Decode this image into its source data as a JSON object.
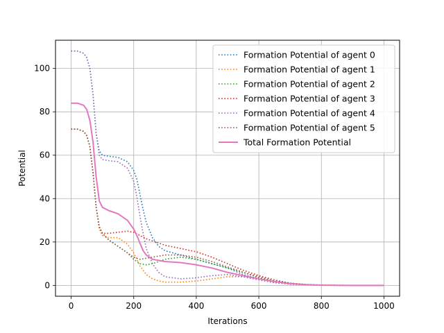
{
  "chart_data": {
    "type": "line",
    "title": "",
    "xlabel": "Iterations",
    "ylabel": "Potential",
    "xlim": [
      -50,
      1050
    ],
    "ylim": [
      -5,
      113
    ],
    "xticks": [
      0,
      200,
      400,
      600,
      800,
      1000
    ],
    "yticks": [
      0,
      20,
      40,
      60,
      80,
      100
    ],
    "grid": true,
    "legend_position": "top-right",
    "series": [
      {
        "name": "Formation Potential of agent 0",
        "color": "#1f77b4",
        "style": "dotted",
        "x": [
          0,
          20,
          40,
          50,
          60,
          70,
          80,
          90,
          100,
          120,
          150,
          180,
          200,
          210,
          220,
          230,
          240,
          260,
          280,
          300,
          350,
          400,
          450,
          500,
          550,
          600,
          650,
          700,
          750,
          800,
          900,
          1000
        ],
        "y": [
          108,
          108,
          107,
          105,
          100,
          88,
          70,
          62,
          60,
          59.5,
          59,
          57,
          53,
          49,
          42,
          35,
          29,
          22,
          18,
          16,
          14,
          12,
          10,
          8,
          5,
          3,
          1.5,
          0.8,
          0.3,
          0.1,
          0,
          0
        ]
      },
      {
        "name": "Formation Potential of agent 1",
        "color": "#ff7f0e",
        "style": "dotted",
        "x": [
          0,
          20,
          40,
          50,
          60,
          70,
          80,
          90,
          100,
          120,
          150,
          180,
          200,
          210,
          220,
          240,
          260,
          280,
          300,
          350,
          400,
          450,
          500,
          550,
          600,
          650,
          700,
          750,
          800,
          900,
          1000
        ],
        "y": [
          72,
          72,
          71,
          69,
          64,
          52,
          36,
          26,
          23,
          22,
          22,
          19,
          15,
          12,
          9,
          5,
          3,
          2,
          1.5,
          1.5,
          2,
          3,
          4,
          4,
          3,
          2,
          1,
          0.5,
          0.2,
          0,
          0
        ]
      },
      {
        "name": "Formation Potential of agent 2",
        "color": "#2ca02c",
        "style": "dotted",
        "x": [
          0,
          20,
          40,
          50,
          60,
          70,
          80,
          90,
          100,
          120,
          150,
          180,
          200,
          220,
          240,
          260,
          280,
          300,
          350,
          400,
          450,
          500,
          550,
          600,
          650,
          700,
          750,
          800,
          900,
          1000
        ],
        "y": [
          72,
          72,
          71,
          69,
          64,
          52,
          36,
          27,
          24,
          21,
          18,
          15,
          12,
          10,
          9.5,
          10,
          11,
          12,
          13,
          12,
          10,
          8,
          6,
          4,
          2,
          1,
          0.4,
          0.1,
          0,
          0
        ]
      },
      {
        "name": "Formation Potential of agent 3",
        "color": "#d62728",
        "style": "dotted",
        "x": [
          0,
          20,
          40,
          50,
          60,
          70,
          80,
          90,
          100,
          120,
          150,
          180,
          200,
          220,
          240,
          260,
          280,
          300,
          350,
          400,
          450,
          500,
          550,
          600,
          650,
          700,
          750,
          800,
          900,
          1000
        ],
        "y": [
          72,
          72,
          71,
          69,
          64,
          52,
          36,
          27,
          24,
          24,
          24.5,
          25,
          24.5,
          23,
          21.5,
          20.5,
          19.5,
          18.5,
          17,
          15.5,
          13,
          10,
          7,
          4.5,
          2.5,
          1,
          0.4,
          0.1,
          0,
          0
        ]
      },
      {
        "name": "Formation Potential of agent 4",
        "color": "#9467bd",
        "style": "dotted",
        "x": [
          0,
          20,
          40,
          50,
          60,
          70,
          80,
          90,
          100,
          120,
          150,
          180,
          200,
          210,
          220,
          230,
          240,
          260,
          280,
          300,
          350,
          400,
          450,
          500,
          550,
          600,
          650,
          700,
          750,
          800,
          900,
          1000
        ],
        "y": [
          108,
          108,
          107,
          105,
          100,
          88,
          70,
          60,
          58,
          57.5,
          57,
          54,
          48,
          41,
          32,
          24,
          17,
          10,
          6,
          4,
          3,
          3.5,
          4.5,
          5,
          4,
          2.5,
          1.2,
          0.5,
          0.2,
          0.05,
          0,
          0
        ]
      },
      {
        "name": "Formation Potential of agent 5",
        "color": "#8c564b",
        "style": "dotted",
        "x": [
          0,
          20,
          40,
          50,
          60,
          70,
          80,
          90,
          100,
          120,
          150,
          180,
          200,
          220,
          240,
          260,
          280,
          300,
          350,
          400,
          450,
          500,
          550,
          600,
          650,
          700,
          750,
          800,
          900,
          1000
        ],
        "y": [
          72,
          72,
          71,
          69,
          64,
          52,
          36,
          27,
          24,
          21,
          18,
          15,
          13,
          12,
          12.5,
          13,
          13.5,
          14,
          14,
          13,
          11,
          8.5,
          6,
          3.5,
          1.8,
          0.8,
          0.3,
          0.1,
          0,
          0
        ]
      },
      {
        "name": "Total Formation Potential",
        "color": "#e377c2",
        "style": "solid",
        "x": [
          0,
          20,
          40,
          50,
          60,
          70,
          80,
          90,
          100,
          120,
          150,
          180,
          200,
          210,
          220,
          230,
          240,
          260,
          280,
          300,
          350,
          400,
          450,
          500,
          550,
          600,
          650,
          700,
          750,
          800,
          900,
          1000
        ],
        "y": [
          84,
          84,
          83,
          81,
          76,
          66,
          50,
          39,
          36,
          34.5,
          33,
          30,
          26,
          23,
          19.5,
          16,
          14,
          12,
          11.5,
          11,
          10.5,
          9.5,
          8,
          6,
          4.5,
          3,
          1.7,
          0.8,
          0.3,
          0.1,
          0,
          0
        ]
      }
    ]
  }
}
